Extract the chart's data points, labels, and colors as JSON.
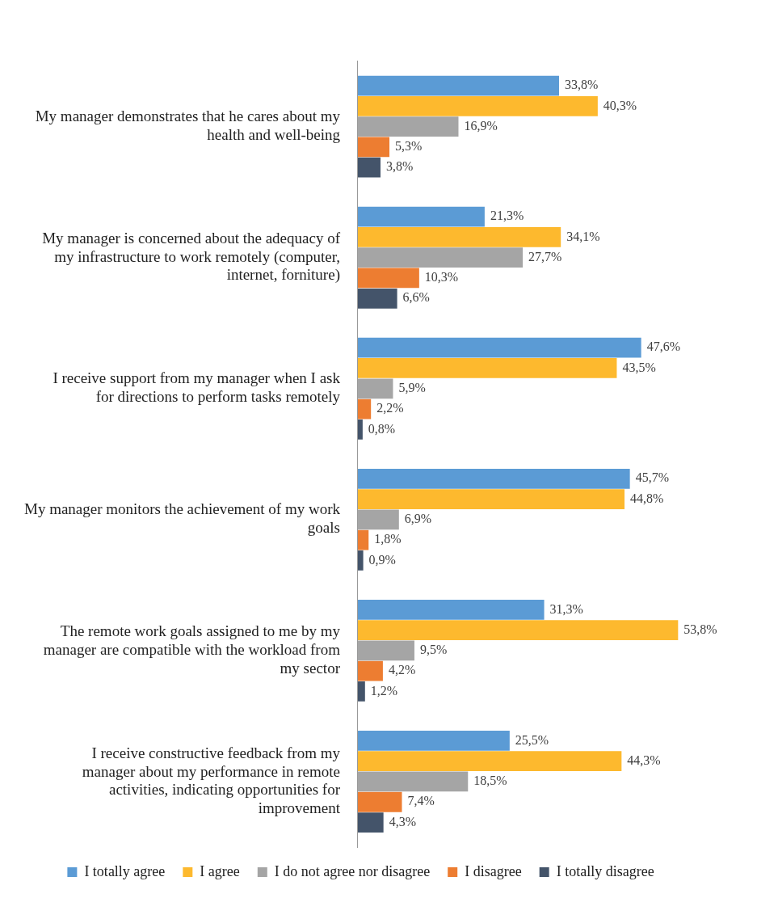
{
  "chart_data": {
    "type": "bar",
    "orientation": "horizontal",
    "categories": [
      "My manager demonstrates that he cares about my health and well-being",
      "My manager is concerned about the adequacy of my infrastructure to work remotely (computer, internet, forniture)",
      "I receive support from my manager when I ask for directions to perform tasks remotely",
      "My manager monitors the achievement of my work goals",
      "The remote work goals assigned to me by my manager are compatible with the workload from my sector",
      "I receive constructive feedback from my manager about my performance in remote activities, indicating opportunities for improvement"
    ],
    "series": [
      {
        "name": "I totally agree",
        "color": "#5b9bd5",
        "values": [
          33.8,
          21.3,
          47.6,
          45.7,
          31.3,
          25.5
        ],
        "value_labels": [
          "33,8%",
          "21,3%",
          "47,6%",
          "45,7%",
          "31,3%",
          "25,5%"
        ]
      },
      {
        "name": "I agree",
        "color": "#fdb92e",
        "values": [
          40.3,
          34.1,
          43.5,
          44.8,
          53.8,
          44.3
        ],
        "value_labels": [
          "40,3%",
          "34,1%",
          "43,5%",
          "44,8%",
          "53,8%",
          "44,3%"
        ]
      },
      {
        "name": "I do not agree nor disagree",
        "color": "#a5a5a5",
        "values": [
          16.9,
          27.7,
          5.9,
          6.9,
          9.5,
          18.5
        ],
        "value_labels": [
          "16,9%",
          "27,7%",
          "5,9%",
          "6,9%",
          "9,5%",
          "18,5%"
        ]
      },
      {
        "name": "I disagree",
        "color": "#ed7d31",
        "values": [
          5.3,
          10.3,
          2.2,
          1.8,
          4.2,
          7.4
        ],
        "value_labels": [
          "5,3%",
          "10,3%",
          "2,2%",
          "1,8%",
          "4,2%",
          "7,4%"
        ]
      },
      {
        "name": "I totally disagree",
        "color": "#44546a",
        "values": [
          3.8,
          6.6,
          0.8,
          0.9,
          1.2,
          4.3
        ],
        "value_labels": [
          "3,8%",
          "6,6%",
          "0,8%",
          "0,9%",
          "1,2%",
          "4,3%"
        ]
      }
    ],
    "tick_labels": "y",
    "grid": false,
    "legend": "bottom"
  }
}
